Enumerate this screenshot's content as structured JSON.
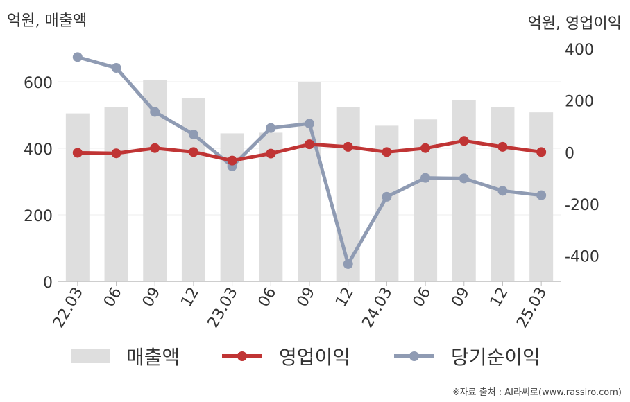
{
  "chart_data": {
    "type": "bar+line",
    "categories": [
      "22.03",
      "06",
      "09",
      "12",
      "23.03",
      "06",
      "09",
      "12",
      "24.03",
      "06",
      "09",
      "12",
      "25.03"
    ],
    "left_axis_unit": "억원, 매출액",
    "right_axis_unit": "억원, 영업이익",
    "left_ylim": [
      0,
      700
    ],
    "left_ticks": [
      0,
      200,
      400,
      600
    ],
    "right_ylim": [
      -500,
      400
    ],
    "right_ticks": [
      -400,
      -200,
      0,
      200,
      400
    ],
    "grid": true,
    "legend_position": "bottom",
    "series": [
      {
        "name": "매출액",
        "type": "bar",
        "axis": "left",
        "color": "#dedede",
        "values": [
          505,
          525,
          606,
          550,
          445,
          447,
          600,
          525,
          468,
          487,
          544,
          523,
          508
        ]
      },
      {
        "name": "영업이익",
        "type": "line",
        "axis": "right",
        "color": "#c03434",
        "values": [
          -3,
          -5,
          15,
          0,
          -33,
          -6,
          30,
          20,
          0,
          15,
          43,
          20,
          0
        ]
      },
      {
        "name": "당기순이익",
        "type": "line",
        "axis": "right",
        "color": "#8f9bb3",
        "values": [
          367,
          325,
          155,
          68,
          -55,
          93,
          110,
          -433,
          -173,
          -100,
          -102,
          -150,
          -167
        ]
      }
    ],
    "source": "※자료 출처 : AI라씨로(www.rassiro.com)"
  }
}
